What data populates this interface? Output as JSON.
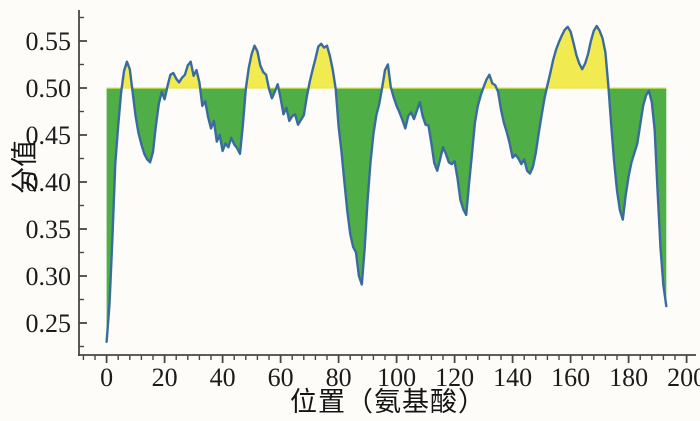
{
  "figure": {
    "background": "#fdfcf8"
  },
  "chart_data": {
    "type": "area",
    "title": "",
    "xlabel": "位置（氨基酸）",
    "ylabel": "分值",
    "baseline": 0.5,
    "fill_rule": "yellow above baseline 0.50, green below baseline 0.50",
    "xlim": [
      -9,
      203
    ],
    "ylim": [
      0.215,
      0.585
    ],
    "grid": false,
    "legend": null,
    "xtick_values": [
      0,
      20,
      40,
      60,
      80,
      100,
      120,
      140,
      160,
      180,
      200
    ],
    "xtick_labels": [
      "0",
      "20",
      "40",
      "60",
      "80",
      "100",
      "120",
      "140",
      "160",
      "180",
      "200"
    ],
    "xtick_minor_step": 4,
    "ytick_values": [
      0.25,
      0.3,
      0.35,
      0.4,
      0.45,
      0.5,
      0.55
    ],
    "ytick_labels": [
      "0.25",
      "0.30",
      "0.35",
      "0.40",
      "0.45",
      "0.50",
      "0.55"
    ],
    "ytick_minor": [
      0.225,
      0.275,
      0.325,
      0.375,
      0.425,
      0.475,
      0.525,
      0.575
    ],
    "colors": {
      "above_fill": "#f2ea51",
      "below_fill": "#4fae46",
      "line": "#3a6b9e",
      "baseline_line": "#ece751",
      "axis": "#4a4642",
      "text": "#1b1b1b"
    },
    "points": [
      [
        0,
        0.23
      ],
      [
        1,
        0.27
      ],
      [
        2,
        0.34
      ],
      [
        3,
        0.42
      ],
      [
        4,
        0.46
      ],
      [
        5,
        0.495
      ],
      [
        6,
        0.518
      ],
      [
        7,
        0.528
      ],
      [
        8,
        0.52
      ],
      [
        9,
        0.495
      ],
      [
        10,
        0.47
      ],
      [
        11,
        0.452
      ],
      [
        12,
        0.44
      ],
      [
        13,
        0.43
      ],
      [
        14,
        0.424
      ],
      [
        15,
        0.421
      ],
      [
        16,
        0.432
      ],
      [
        17,
        0.46
      ],
      [
        18,
        0.483
      ],
      [
        19,
        0.496
      ],
      [
        20,
        0.488
      ],
      [
        21,
        0.502
      ],
      [
        22,
        0.514
      ],
      [
        23,
        0.516
      ],
      [
        24,
        0.51
      ],
      [
        25,
        0.506
      ],
      [
        26,
        0.511
      ],
      [
        27,
        0.514
      ],
      [
        28,
        0.524
      ],
      [
        29,
        0.528
      ],
      [
        30,
        0.513
      ],
      [
        31,
        0.519
      ],
      [
        32,
        0.506
      ],
      [
        33,
        0.481
      ],
      [
        34,
        0.486
      ],
      [
        35,
        0.469
      ],
      [
        36,
        0.457
      ],
      [
        37,
        0.465
      ],
      [
        38,
        0.443
      ],
      [
        39,
        0.45
      ],
      [
        40,
        0.433
      ],
      [
        41,
        0.441
      ],
      [
        42,
        0.437
      ],
      [
        43,
        0.447
      ],
      [
        44,
        0.44
      ],
      [
        45,
        0.436
      ],
      [
        46,
        0.43
      ],
      [
        47,
        0.461
      ],
      [
        48,
        0.499
      ],
      [
        49,
        0.521
      ],
      [
        50,
        0.536
      ],
      [
        51,
        0.545
      ],
      [
        52,
        0.539
      ],
      [
        53,
        0.524
      ],
      [
        54,
        0.517
      ],
      [
        55,
        0.514
      ],
      [
        56,
        0.499
      ],
      [
        57,
        0.489
      ],
      [
        58,
        0.496
      ],
      [
        59,
        0.504
      ],
      [
        60,
        0.489
      ],
      [
        61,
        0.472
      ],
      [
        62,
        0.479
      ],
      [
        63,
        0.465
      ],
      [
        64,
        0.47
      ],
      [
        65,
        0.472
      ],
      [
        66,
        0.461
      ],
      [
        67,
        0.466
      ],
      [
        68,
        0.471
      ],
      [
        69,
        0.49
      ],
      [
        70,
        0.506
      ],
      [
        71,
        0.519
      ],
      [
        72,
        0.531
      ],
      [
        73,
        0.544
      ],
      [
        74,
        0.547
      ],
      [
        75,
        0.543
      ],
      [
        76,
        0.545
      ],
      [
        77,
        0.534
      ],
      [
        78,
        0.519
      ],
      [
        79,
        0.499
      ],
      [
        80,
        0.459
      ],
      [
        81,
        0.432
      ],
      [
        82,
        0.4
      ],
      [
        83,
        0.369
      ],
      [
        84,
        0.345
      ],
      [
        85,
        0.331
      ],
      [
        86,
        0.325
      ],
      [
        87,
        0.3
      ],
      [
        88,
        0.291
      ],
      [
        89,
        0.33
      ],
      [
        90,
        0.381
      ],
      [
        91,
        0.421
      ],
      [
        92,
        0.451
      ],
      [
        93,
        0.471
      ],
      [
        94,
        0.483
      ],
      [
        95,
        0.5
      ],
      [
        96,
        0.519
      ],
      [
        97,
        0.525
      ],
      [
        98,
        0.501
      ],
      [
        99,
        0.49
      ],
      [
        100,
        0.481
      ],
      [
        101,
        0.474
      ],
      [
        102,
        0.466
      ],
      [
        103,
        0.457
      ],
      [
        104,
        0.47
      ],
      [
        105,
        0.474
      ],
      [
        106,
        0.467
      ],
      [
        107,
        0.476
      ],
      [
        108,
        0.485
      ],
      [
        109,
        0.47
      ],
      [
        110,
        0.461
      ],
      [
        111,
        0.46
      ],
      [
        112,
        0.441
      ],
      [
        113,
        0.42
      ],
      [
        114,
        0.412
      ],
      [
        115,
        0.424
      ],
      [
        116,
        0.437
      ],
      [
        117,
        0.43
      ],
      [
        118,
        0.421
      ],
      [
        119,
        0.419
      ],
      [
        120,
        0.422
      ],
      [
        121,
        0.404
      ],
      [
        122,
        0.381
      ],
      [
        123,
        0.371
      ],
      [
        124,
        0.365
      ],
      [
        125,
        0.399
      ],
      [
        126,
        0.43
      ],
      [
        127,
        0.463
      ],
      [
        128,
        0.481
      ],
      [
        129,
        0.492
      ],
      [
        130,
        0.501
      ],
      [
        131,
        0.509
      ],
      [
        132,
        0.514
      ],
      [
        133,
        0.505
      ],
      [
        134,
        0.503
      ],
      [
        135,
        0.496
      ],
      [
        136,
        0.477
      ],
      [
        137,
        0.463
      ],
      [
        138,
        0.453
      ],
      [
        139,
        0.441
      ],
      [
        140,
        0.426
      ],
      [
        141,
        0.429
      ],
      [
        142,
        0.425
      ],
      [
        143,
        0.419
      ],
      [
        144,
        0.424
      ],
      [
        145,
        0.412
      ],
      [
        146,
        0.409
      ],
      [
        147,
        0.416
      ],
      [
        148,
        0.431
      ],
      [
        149,
        0.452
      ],
      [
        150,
        0.471
      ],
      [
        151,
        0.489
      ],
      [
        152,
        0.503
      ],
      [
        153,
        0.516
      ],
      [
        154,
        0.53
      ],
      [
        155,
        0.541
      ],
      [
        156,
        0.549
      ],
      [
        157,
        0.556
      ],
      [
        158,
        0.562
      ],
      [
        159,
        0.565
      ],
      [
        160,
        0.56
      ],
      [
        161,
        0.548
      ],
      [
        162,
        0.535
      ],
      [
        163,
        0.526
      ],
      [
        164,
        0.52
      ],
      [
        165,
        0.526
      ],
      [
        166,
        0.536
      ],
      [
        167,
        0.55
      ],
      [
        168,
        0.561
      ],
      [
        169,
        0.566
      ],
      [
        170,
        0.561
      ],
      [
        171,
        0.553
      ],
      [
        172,
        0.538
      ],
      [
        173,
        0.503
      ],
      [
        174,
        0.461
      ],
      [
        175,
        0.422
      ],
      [
        176,
        0.391
      ],
      [
        177,
        0.37
      ],
      [
        178,
        0.36
      ],
      [
        179,
        0.386
      ],
      [
        180,
        0.406
      ],
      [
        181,
        0.421
      ],
      [
        182,
        0.431
      ],
      [
        183,
        0.441
      ],
      [
        184,
        0.461
      ],
      [
        185,
        0.481
      ],
      [
        186,
        0.492
      ],
      [
        187,
        0.497
      ],
      [
        188,
        0.485
      ],
      [
        189,
        0.455
      ],
      [
        190,
        0.39
      ],
      [
        191,
        0.33
      ],
      [
        192,
        0.29
      ],
      [
        193,
        0.268
      ]
    ]
  }
}
